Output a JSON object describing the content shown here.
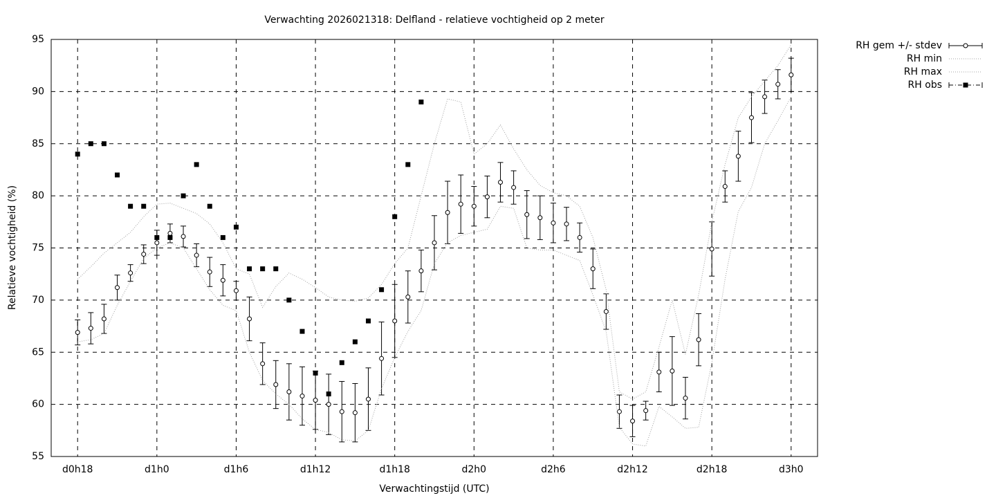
{
  "chart_data": {
    "type": "line",
    "title": "Verwachting 2026021318: Delfland - relatieve vochtigheid op 2 meter",
    "xlabel": "Verwachtingstijd (UTC)",
    "ylabel": "Relatieve vochtigheid (%)",
    "x": [
      18,
      19,
      20,
      21,
      22,
      23,
      24,
      25,
      26,
      27,
      28,
      29,
      30,
      31,
      32,
      33,
      34,
      35,
      36,
      37,
      38,
      39,
      40,
      41,
      42,
      43,
      44,
      45,
      46,
      47,
      48,
      49,
      50,
      51,
      52,
      53,
      54,
      55,
      56,
      57,
      58,
      59,
      60,
      61,
      62,
      63,
      64,
      65,
      66,
      67,
      68,
      69,
      70,
      71,
      72
    ],
    "xlim": [
      16,
      74
    ],
    "xticks": [
      {
        "value": 18,
        "label": "d0h18"
      },
      {
        "value": 24,
        "label": "d1h0"
      },
      {
        "value": 30,
        "label": "d1h6"
      },
      {
        "value": 36,
        "label": "d1h12"
      },
      {
        "value": 42,
        "label": "d1h18"
      },
      {
        "value": 48,
        "label": "d2h0"
      },
      {
        "value": 54,
        "label": "d2h6"
      },
      {
        "value": 60,
        "label": "d2h12"
      },
      {
        "value": 66,
        "label": "d2h18"
      },
      {
        "value": 72,
        "label": "d3h0"
      }
    ],
    "ylim": [
      55,
      95
    ],
    "yticks": [
      55,
      60,
      65,
      70,
      75,
      80,
      85,
      90,
      95
    ],
    "grid": true,
    "legend": "outside-top-right",
    "series": [
      {
        "name": "RH gem +/- stdev",
        "color": "#000000",
        "style": "errorbars",
        "values": [
          66.9,
          67.3,
          68.2,
          71.2,
          72.6,
          74.4,
          75.5,
          76.4,
          76.1,
          74.3,
          72.7,
          71.9,
          70.9,
          68.2,
          63.9,
          61.9,
          61.2,
          60.8,
          60.4,
          60.0,
          59.3,
          59.2,
          60.5,
          64.4,
          68.0,
          70.3,
          72.8,
          75.5,
          78.4,
          79.2,
          79.0,
          79.9,
          81.3,
          80.8,
          78.2,
          77.9,
          77.4,
          77.3,
          76.0,
          73.0,
          68.9,
          59.3,
          58.4,
          59.4,
          63.1,
          63.2,
          60.6,
          66.2,
          74.9,
          80.9,
          83.8,
          87.5,
          89.5,
          90.7,
          91.6
        ],
        "errors": [
          1.2,
          1.5,
          1.4,
          1.2,
          0.8,
          0.9,
          1.2,
          0.9,
          1.0,
          1.1,
          1.4,
          1.5,
          0.9,
          2.1,
          2.0,
          2.3,
          2.7,
          2.8,
          2.8,
          2.9,
          2.9,
          2.8,
          3.0,
          3.5,
          3.5,
          2.5,
          2.0,
          2.6,
          3.0,
          2.8,
          1.9,
          2.0,
          1.9,
          1.6,
          2.3,
          2.1,
          1.9,
          1.6,
          1.4,
          1.9,
          1.7,
          1.6,
          1.5,
          0.9,
          1.9,
          3.3,
          2.0,
          2.5,
          2.6,
          1.5,
          2.4,
          2.4,
          1.6,
          1.4,
          1.6
        ]
      },
      {
        "name": "RH min",
        "color": "#a0a0a0",
        "style": "dotted",
        "values": [
          66,
          66.2,
          66.8,
          69.5,
          71.8,
          74,
          75,
          75.5,
          75,
          73,
          71,
          69.5,
          69,
          65,
          62.3,
          61,
          60,
          58.6,
          57.6,
          57.3,
          56.6,
          56.5,
          57.5,
          61.5,
          64.5,
          67,
          69,
          73.5,
          75.5,
          76.2,
          76.5,
          76.8,
          79,
          78.8,
          75,
          74.8,
          74.8,
          74.3,
          73.8,
          70.5,
          67,
          57.8,
          56.2,
          56,
          59.8,
          58.8,
          57.7,
          57.8,
          64,
          72,
          78.5,
          80.8,
          85,
          87.2,
          89.5
        ]
      },
      {
        "name": "RH max",
        "color": "#a0a0a0",
        "style": "dotted",
        "values": [
          72,
          73.2,
          74.5,
          75.5,
          76.5,
          78,
          79.2,
          79.3,
          78.8,
          78.3,
          77.3,
          75.5,
          73,
          72.5,
          69.3,
          71.3,
          72.6,
          72,
          71.2,
          70.3,
          70,
          69.9,
          70.2,
          71.5,
          73.5,
          75,
          80,
          85,
          89.3,
          89,
          84,
          85,
          86.8,
          84.5,
          82.5,
          81,
          80.3,
          80,
          79,
          76,
          71,
          61.2,
          60.5,
          61.2,
          65.5,
          70,
          64.8,
          70.5,
          77.5,
          83,
          87.5,
          89.5,
          91,
          92.5,
          94.5
        ]
      },
      {
        "name": "RH obs",
        "color": "#000000",
        "style": "points",
        "values": [
          84,
          85,
          85,
          82,
          79,
          79,
          76,
          76,
          80,
          83,
          79,
          76,
          77,
          73,
          73,
          73,
          70,
          67,
          63,
          61,
          64,
          66,
          68,
          71,
          78,
          83,
          89,
          null,
          null,
          null,
          null,
          null,
          null,
          null,
          null,
          null,
          null,
          null,
          null,
          null,
          null,
          null,
          null,
          null,
          null,
          null,
          null,
          null,
          null,
          null,
          null,
          null,
          null,
          null,
          null
        ]
      }
    ]
  }
}
